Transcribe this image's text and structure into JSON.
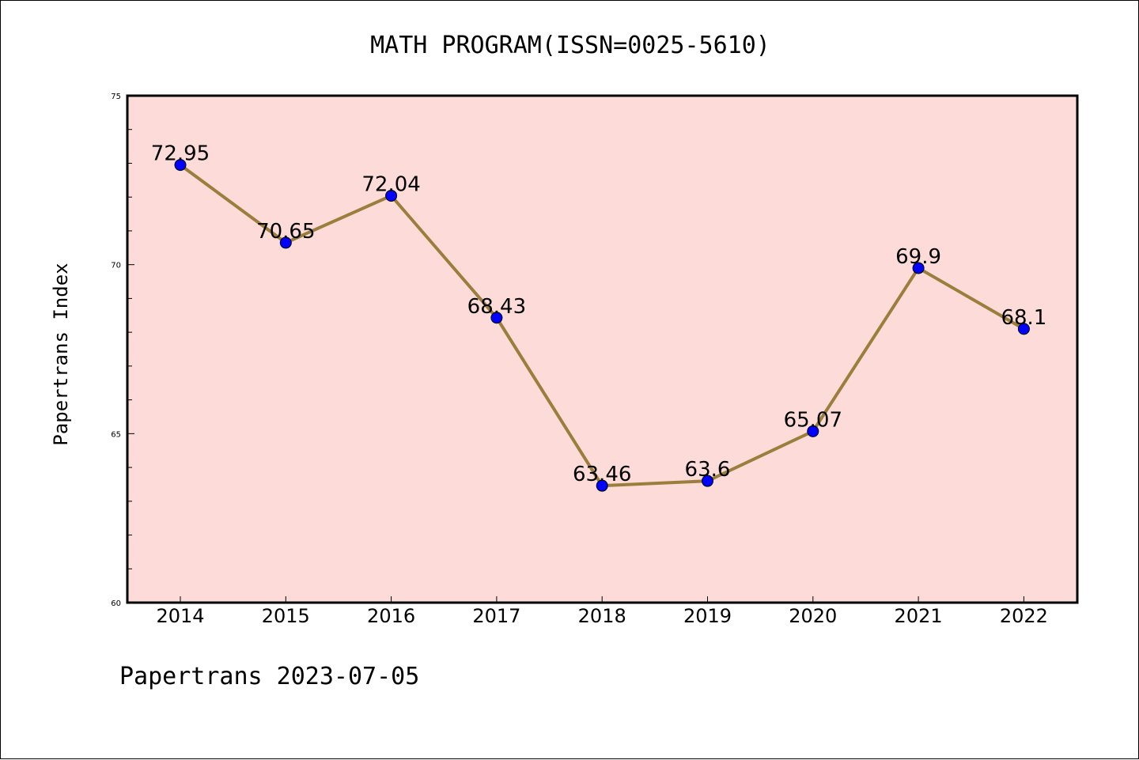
{
  "chart_data": {
    "type": "line",
    "title": "MATH PROGRAM(ISSN=0025-5610)",
    "ylabel": "Papertrans Index",
    "xlabel": "",
    "footer": "Papertrans 2023-07-05",
    "categories": [
      "2014",
      "2015",
      "2016",
      "2017",
      "2018",
      "2019",
      "2020",
      "2021",
      "2022"
    ],
    "values": [
      72.95,
      70.65,
      72.04,
      68.43,
      63.46,
      63.6,
      65.07,
      69.9,
      68.1
    ],
    "data_labels": [
      "72.95",
      "70.65",
      "72.04",
      "68.43",
      "63.46",
      "63.6",
      "65.07",
      "69.9",
      "68.1"
    ],
    "ylim": [
      60,
      75
    ],
    "yticks": [
      "60",
      "65",
      "70",
      "75"
    ],
    "grid": false,
    "colors": {
      "plot_background": "#fddbd8",
      "line": "#9b7e3c",
      "marker": "#0000ff"
    }
  }
}
